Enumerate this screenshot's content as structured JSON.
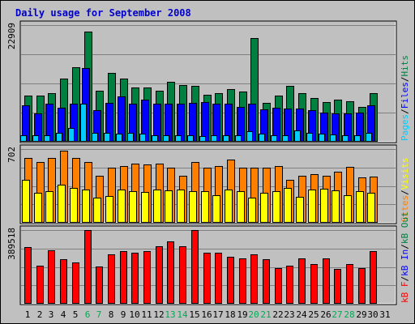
{
  "chart_data": {
    "type": "bar",
    "title": "Daily usage for September 2008",
    "categories": [
      "1",
      "2",
      "3",
      "4",
      "5",
      "6",
      "7",
      "8",
      "9",
      "10",
      "11",
      "12",
      "13",
      "14",
      "15",
      "16",
      "17",
      "18",
      "19",
      "20",
      "21",
      "22",
      "23",
      "24",
      "25",
      "26",
      "27",
      "28",
      "29",
      "30",
      "31"
    ],
    "weekend_days": [
      6,
      7,
      13,
      14,
      20,
      21,
      27,
      28
    ],
    "panels": [
      {
        "name": "hits-files-pages",
        "y_max_label": "22909",
        "y_max": 22909,
        "legend": [
          {
            "text": "Pages",
            "color": "#00ccff"
          },
          {
            "text": "/",
            "color": "#000000"
          },
          {
            "text": "Files",
            "color": "#0000ff"
          },
          {
            "text": "/",
            "color": "#000000"
          },
          {
            "text": "Hits",
            "color": "#008040"
          }
        ],
        "series": [
          {
            "name": "Hits",
            "color": "#008040",
            "values": [
              9000,
              9100,
              9500,
              12400,
              14600,
              21600,
              10000,
              13600,
              12400,
              10600,
              10600,
              10100,
              11800,
              11200,
              11000,
              9300,
              9500,
              10300,
              9800,
              20300,
              7700,
              9100,
              11000,
              9600,
              8600,
              7800,
              8200,
              8000,
              6900,
              9500,
              null
            ]
          },
          {
            "name": "Files",
            "color": "#0000ff",
            "values": [
              7100,
              5600,
              7500,
              6700,
              7400,
              14500,
              6200,
              7600,
              8900,
              7400,
              8300,
              7500,
              7500,
              7400,
              7700,
              7800,
              7400,
              7400,
              6800,
              7400,
              6400,
              6700,
              6500,
              6500,
              6200,
              5700,
              5600,
              5600,
              5800,
              7200,
              null
            ]
          },
          {
            "name": "Pages",
            "color": "#00ccff",
            "values": [
              1200,
              1200,
              1300,
              1800,
              2700,
              7400,
              1700,
              1700,
              1600,
              1800,
              1600,
              1200,
              1200,
              1300,
              1200,
              1100,
              1300,
              1300,
              1200,
              2000,
              1600,
              1300,
              1200,
              2300,
              1700,
              1600,
              1400,
              1300,
              1300,
              1700,
              null
            ]
          }
        ]
      },
      {
        "name": "visits-sites",
        "y_max_label": "702",
        "y_max": 702,
        "legend": [
          {
            "text": "Sites",
            "color": "#ff8000"
          },
          {
            "text": "/",
            "color": "#000000"
          },
          {
            "text": "Visits",
            "color": "#ffff00"
          }
        ],
        "series": [
          {
            "name": "Sites",
            "color": "#ff8000",
            "values": [
              615,
              578,
              615,
              683,
              615,
              578,
              450,
              525,
              543,
              563,
              555,
              563,
              525,
              450,
              578,
              525,
              540,
              600,
              525,
              525,
              525,
              540,
              405,
              450,
              465,
              450,
              485,
              535,
              435,
              440,
              null
            ]
          },
          {
            "name": "Visits",
            "color": "#ffff00",
            "values": [
              405,
              285,
              300,
              360,
              330,
              315,
              240,
              255,
              320,
              300,
              295,
              315,
              310,
              315,
              300,
              300,
              265,
              315,
              300,
              240,
              285,
              300,
              330,
              250,
              315,
              325,
              310,
              265,
              300,
              285,
              null
            ]
          }
        ]
      },
      {
        "name": "kbytes",
        "y_max_label": "389518",
        "y_max": 389518,
        "legend": [
          {
            "text": "kB F",
            "color": "#ff0000"
          },
          {
            "text": "/",
            "color": "#000000"
          },
          {
            "text": "kB In",
            "color": "#0000ff"
          },
          {
            "text": "/",
            "color": "#000000"
          },
          {
            "text": "kB Out",
            "color": "#008040"
          }
        ],
        "series": [
          {
            "name": "kB F",
            "color": "#ff0000",
            "values": [
              300000,
              200000,
              282000,
              234000,
              217000,
              389518,
              199000,
              263000,
              280000,
              270000,
              280000,
              303000,
              331000,
              302000,
              389518,
              270000,
              270000,
              250000,
              240000,
              262000,
              234000,
              190000,
              203000,
              238000,
              211000,
              240000,
              184000,
              211000,
              190000,
              280000,
              null
            ]
          }
        ]
      }
    ]
  }
}
